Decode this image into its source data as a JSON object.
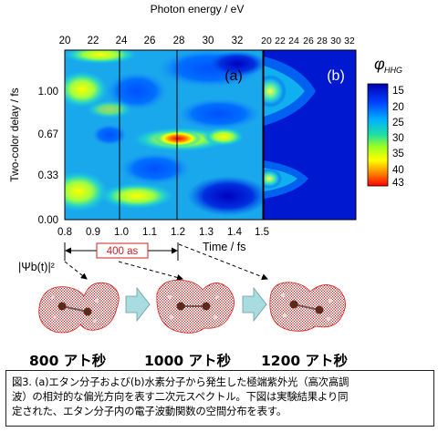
{
  "figure": {
    "top_axis_title": "Photon energy / eV",
    "top_ticks_a": [
      "20",
      "22",
      "24",
      "26",
      "28",
      "30",
      "32"
    ],
    "top_ticks_b": [
      "20",
      "22",
      "24",
      "26",
      "28",
      "30",
      "32"
    ],
    "y_axis_title": "Two-color delay / fs",
    "y_ticks": [
      "1.00",
      "0.67",
      "0.33",
      "0.00"
    ],
    "x_axis_title": "Time / fs",
    "x_ticks": [
      "0.8",
      "0.9",
      "1.0",
      "1.1",
      "1.2",
      "1.3",
      "1.4",
      "1.5"
    ],
    "panel_a_label": "(a)",
    "panel_b_label": "(b)",
    "colorbar_title": "φ",
    "colorbar_sub": "HHG",
    "colorbar_ticks": [
      "15",
      "20",
      "25",
      "30",
      "35",
      "40",
      "43"
    ],
    "interval_label": "400 as",
    "psi_label": "|Ψb(t)|²",
    "colors": {
      "low": "#0000c8",
      "mid": "#10c0e0",
      "high": "#ffff00",
      "peak": "#ff0000",
      "arrow": "#a8dce0",
      "orbital": "#d02020"
    }
  },
  "time_labels": [
    "800 アト秒",
    "1000 アト秒",
    "1200 アト秒"
  ],
  "caption": {
    "lines": [
      "図3. (a)エタン分子および(b)水素分子から発生した極端紫外光（高次高調",
      "波）の相対的な偏光方向を表す二次元スペクトル。下図は実験結果より同",
      "定された、エタン分子内の電子波動関数の空間分布を表す。"
    ]
  }
}
